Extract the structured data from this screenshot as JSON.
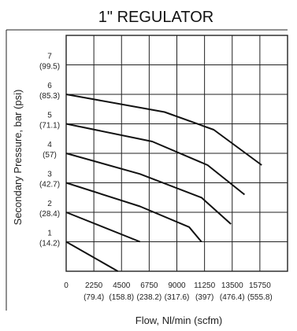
{
  "chart_data": {
    "type": "line",
    "title": "1\" REGULATOR",
    "xlabel": "Flow, Nl/min (scfm)",
    "ylabel": "Secondary Pressure, bar (psi)",
    "xlim": [
      0,
      18000
    ],
    "ylim": [
      0,
      8
    ],
    "grid": true,
    "x_ticks": [
      {
        "value": 0,
        "label": "0",
        "sub": ""
      },
      {
        "value": 2250,
        "label": "2250",
        "sub": "(79.4)"
      },
      {
        "value": 4500,
        "label": "4500",
        "sub": "(158.8)"
      },
      {
        "value": 6750,
        "label": "6750",
        "sub": "(238.2)"
      },
      {
        "value": 9000,
        "label": "9000",
        "sub": "(317.6)"
      },
      {
        "value": 11250,
        "label": "11250",
        "sub": "(397)"
      },
      {
        "value": 13500,
        "label": "13500",
        "sub": "(476.4)"
      },
      {
        "value": 15750,
        "label": "15750",
        "sub": "(555.8)"
      }
    ],
    "y_ticks": [
      {
        "value": 1,
        "label": "1",
        "sub": "(14.2)"
      },
      {
        "value": 2,
        "label": "2",
        "sub": "(28.4)"
      },
      {
        "value": 3,
        "label": "3",
        "sub": "(42.7)"
      },
      {
        "value": 4,
        "label": "4",
        "sub": "(57)"
      },
      {
        "value": 5,
        "label": "5",
        "sub": "(71.1)"
      },
      {
        "value": 6,
        "label": "6",
        "sub": "(85.3)"
      },
      {
        "value": 7,
        "label": "7",
        "sub": "(99.5)"
      }
    ],
    "series": [
      {
        "x": [
          0,
          4200
        ],
        "y": [
          1.0,
          0.0
        ]
      },
      {
        "x": [
          0,
          6000
        ],
        "y": [
          2.0,
          1.0
        ]
      },
      {
        "x": [
          0,
          6000,
          10000,
          11000
        ],
        "y": [
          3.0,
          2.2,
          1.5,
          1.0
        ]
      },
      {
        "x": [
          0,
          6000,
          11000,
          13400
        ],
        "y": [
          4.0,
          3.3,
          2.5,
          1.6
        ]
      },
      {
        "x": [
          0,
          7000,
          11500,
          14500
        ],
        "y": [
          5.0,
          4.4,
          3.6,
          2.6
        ]
      },
      {
        "x": [
          0,
          8000,
          12000,
          15900
        ],
        "y": [
          6.0,
          5.4,
          4.8,
          3.6
        ]
      }
    ]
  }
}
